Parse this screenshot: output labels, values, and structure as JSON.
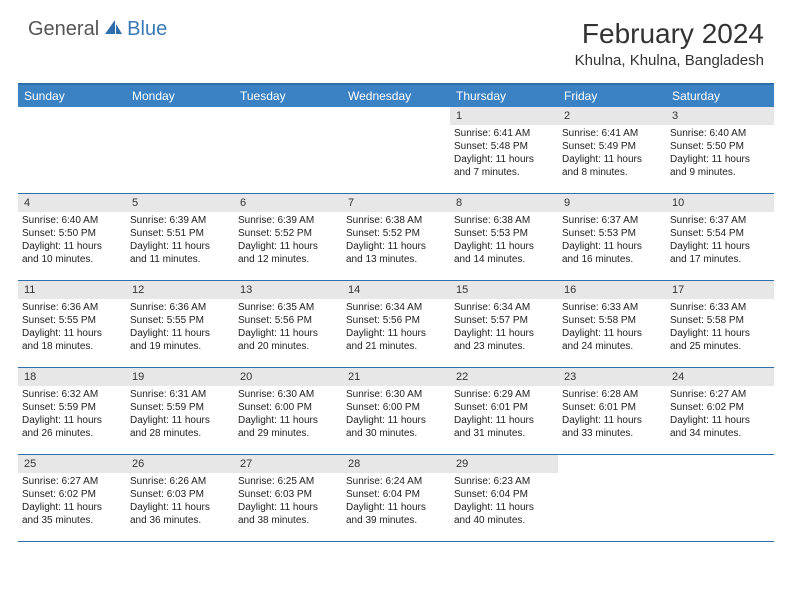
{
  "brand": {
    "general": "General",
    "blue": "Blue"
  },
  "title": "February 2024",
  "location": "Khulna, Khulna, Bangladesh",
  "colors": {
    "header_bar": "#3b82c4",
    "border": "#2e6fab",
    "daynum_bg": "#e7e7e7",
    "text": "#222222",
    "brand_blue": "#3b7ab8",
    "brand_gray": "#555555"
  },
  "weekdays": [
    "Sunday",
    "Monday",
    "Tuesday",
    "Wednesday",
    "Thursday",
    "Friday",
    "Saturday"
  ],
  "weeks": [
    [
      {
        "empty": true
      },
      {
        "empty": true
      },
      {
        "empty": true
      },
      {
        "empty": true
      },
      {
        "num": "1",
        "sunrise": "Sunrise: 6:41 AM",
        "sunset": "Sunset: 5:48 PM",
        "day1": "Daylight: 11 hours",
        "day2": "and 7 minutes."
      },
      {
        "num": "2",
        "sunrise": "Sunrise: 6:41 AM",
        "sunset": "Sunset: 5:49 PM",
        "day1": "Daylight: 11 hours",
        "day2": "and 8 minutes."
      },
      {
        "num": "3",
        "sunrise": "Sunrise: 6:40 AM",
        "sunset": "Sunset: 5:50 PM",
        "day1": "Daylight: 11 hours",
        "day2": "and 9 minutes."
      }
    ],
    [
      {
        "num": "4",
        "sunrise": "Sunrise: 6:40 AM",
        "sunset": "Sunset: 5:50 PM",
        "day1": "Daylight: 11 hours",
        "day2": "and 10 minutes."
      },
      {
        "num": "5",
        "sunrise": "Sunrise: 6:39 AM",
        "sunset": "Sunset: 5:51 PM",
        "day1": "Daylight: 11 hours",
        "day2": "and 11 minutes."
      },
      {
        "num": "6",
        "sunrise": "Sunrise: 6:39 AM",
        "sunset": "Sunset: 5:52 PM",
        "day1": "Daylight: 11 hours",
        "day2": "and 12 minutes."
      },
      {
        "num": "7",
        "sunrise": "Sunrise: 6:38 AM",
        "sunset": "Sunset: 5:52 PM",
        "day1": "Daylight: 11 hours",
        "day2": "and 13 minutes."
      },
      {
        "num": "8",
        "sunrise": "Sunrise: 6:38 AM",
        "sunset": "Sunset: 5:53 PM",
        "day1": "Daylight: 11 hours",
        "day2": "and 14 minutes."
      },
      {
        "num": "9",
        "sunrise": "Sunrise: 6:37 AM",
        "sunset": "Sunset: 5:53 PM",
        "day1": "Daylight: 11 hours",
        "day2": "and 16 minutes."
      },
      {
        "num": "10",
        "sunrise": "Sunrise: 6:37 AM",
        "sunset": "Sunset: 5:54 PM",
        "day1": "Daylight: 11 hours",
        "day2": "and 17 minutes."
      }
    ],
    [
      {
        "num": "11",
        "sunrise": "Sunrise: 6:36 AM",
        "sunset": "Sunset: 5:55 PM",
        "day1": "Daylight: 11 hours",
        "day2": "and 18 minutes."
      },
      {
        "num": "12",
        "sunrise": "Sunrise: 6:36 AM",
        "sunset": "Sunset: 5:55 PM",
        "day1": "Daylight: 11 hours",
        "day2": "and 19 minutes."
      },
      {
        "num": "13",
        "sunrise": "Sunrise: 6:35 AM",
        "sunset": "Sunset: 5:56 PM",
        "day1": "Daylight: 11 hours",
        "day2": "and 20 minutes."
      },
      {
        "num": "14",
        "sunrise": "Sunrise: 6:34 AM",
        "sunset": "Sunset: 5:56 PM",
        "day1": "Daylight: 11 hours",
        "day2": "and 21 minutes."
      },
      {
        "num": "15",
        "sunrise": "Sunrise: 6:34 AM",
        "sunset": "Sunset: 5:57 PM",
        "day1": "Daylight: 11 hours",
        "day2": "and 23 minutes."
      },
      {
        "num": "16",
        "sunrise": "Sunrise: 6:33 AM",
        "sunset": "Sunset: 5:58 PM",
        "day1": "Daylight: 11 hours",
        "day2": "and 24 minutes."
      },
      {
        "num": "17",
        "sunrise": "Sunrise: 6:33 AM",
        "sunset": "Sunset: 5:58 PM",
        "day1": "Daylight: 11 hours",
        "day2": "and 25 minutes."
      }
    ],
    [
      {
        "num": "18",
        "sunrise": "Sunrise: 6:32 AM",
        "sunset": "Sunset: 5:59 PM",
        "day1": "Daylight: 11 hours",
        "day2": "and 26 minutes."
      },
      {
        "num": "19",
        "sunrise": "Sunrise: 6:31 AM",
        "sunset": "Sunset: 5:59 PM",
        "day1": "Daylight: 11 hours",
        "day2": "and 28 minutes."
      },
      {
        "num": "20",
        "sunrise": "Sunrise: 6:30 AM",
        "sunset": "Sunset: 6:00 PM",
        "day1": "Daylight: 11 hours",
        "day2": "and 29 minutes."
      },
      {
        "num": "21",
        "sunrise": "Sunrise: 6:30 AM",
        "sunset": "Sunset: 6:00 PM",
        "day1": "Daylight: 11 hours",
        "day2": "and 30 minutes."
      },
      {
        "num": "22",
        "sunrise": "Sunrise: 6:29 AM",
        "sunset": "Sunset: 6:01 PM",
        "day1": "Daylight: 11 hours",
        "day2": "and 31 minutes."
      },
      {
        "num": "23",
        "sunrise": "Sunrise: 6:28 AM",
        "sunset": "Sunset: 6:01 PM",
        "day1": "Daylight: 11 hours",
        "day2": "and 33 minutes."
      },
      {
        "num": "24",
        "sunrise": "Sunrise: 6:27 AM",
        "sunset": "Sunset: 6:02 PM",
        "day1": "Daylight: 11 hours",
        "day2": "and 34 minutes."
      }
    ],
    [
      {
        "num": "25",
        "sunrise": "Sunrise: 6:27 AM",
        "sunset": "Sunset: 6:02 PM",
        "day1": "Daylight: 11 hours",
        "day2": "and 35 minutes."
      },
      {
        "num": "26",
        "sunrise": "Sunrise: 6:26 AM",
        "sunset": "Sunset: 6:03 PM",
        "day1": "Daylight: 11 hours",
        "day2": "and 36 minutes."
      },
      {
        "num": "27",
        "sunrise": "Sunrise: 6:25 AM",
        "sunset": "Sunset: 6:03 PM",
        "day1": "Daylight: 11 hours",
        "day2": "and 38 minutes."
      },
      {
        "num": "28",
        "sunrise": "Sunrise: 6:24 AM",
        "sunset": "Sunset: 6:04 PM",
        "day1": "Daylight: 11 hours",
        "day2": "and 39 minutes."
      },
      {
        "num": "29",
        "sunrise": "Sunrise: 6:23 AM",
        "sunset": "Sunset: 6:04 PM",
        "day1": "Daylight: 11 hours",
        "day2": "and 40 minutes."
      },
      {
        "empty": true
      },
      {
        "empty": true
      }
    ]
  ]
}
